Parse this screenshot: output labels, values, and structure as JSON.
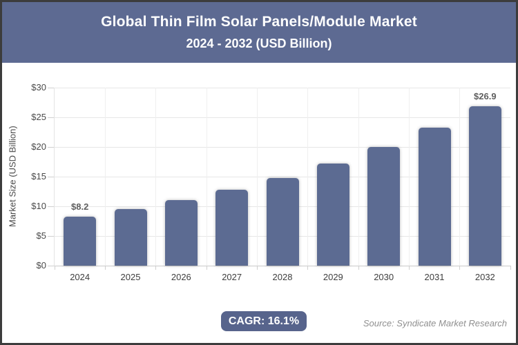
{
  "header": {
    "title_line1": "Global Thin Film Solar Panels/Module Market",
    "title_line2": "2024 - 2032 (USD Billion)"
  },
  "chart_data": {
    "type": "bar",
    "title": "Global Thin Film Solar Panels/Module Market",
    "subtitle": "2024 - 2032 (USD Billion)",
    "categories": [
      "2024",
      "2025",
      "2026",
      "2027",
      "2028",
      "2029",
      "2030",
      "2031",
      "2032"
    ],
    "values": [
      8.2,
      9.5,
      11.0,
      12.8,
      14.8,
      17.2,
      20.0,
      23.2,
      26.9
    ],
    "value_labels": [
      {
        "index": 0,
        "label": "$8.2"
      },
      {
        "index": 8,
        "label": "$26.9"
      }
    ],
    "xlabel": "",
    "ylabel": "Market Size (USD Billion)",
    "ylim": [
      0,
      30
    ],
    "ytick_step": 5,
    "ytick_labels": [
      "$0",
      "$5",
      "$10",
      "$15",
      "$20",
      "$25",
      "$30"
    ],
    "grid": true,
    "legend": "none",
    "bar_color": "#5c6b92"
  },
  "footer": {
    "cagr_label": "CAGR: 16.1%",
    "source": "Source: Syndicate Market Research"
  },
  "colors": {
    "header_bg": "#5d6a92",
    "bar": "#5c6b92",
    "badge_bg": "#57648c",
    "border": "#3c3c3c",
    "grid_h": "#e6e6e6",
    "grid_v": "#efefef",
    "tick_mark": "#cfcfcf",
    "tick_text": "#4a4a4a",
    "data_label_text": "#5e5e5e",
    "source_text": "#8f8f8f"
  }
}
